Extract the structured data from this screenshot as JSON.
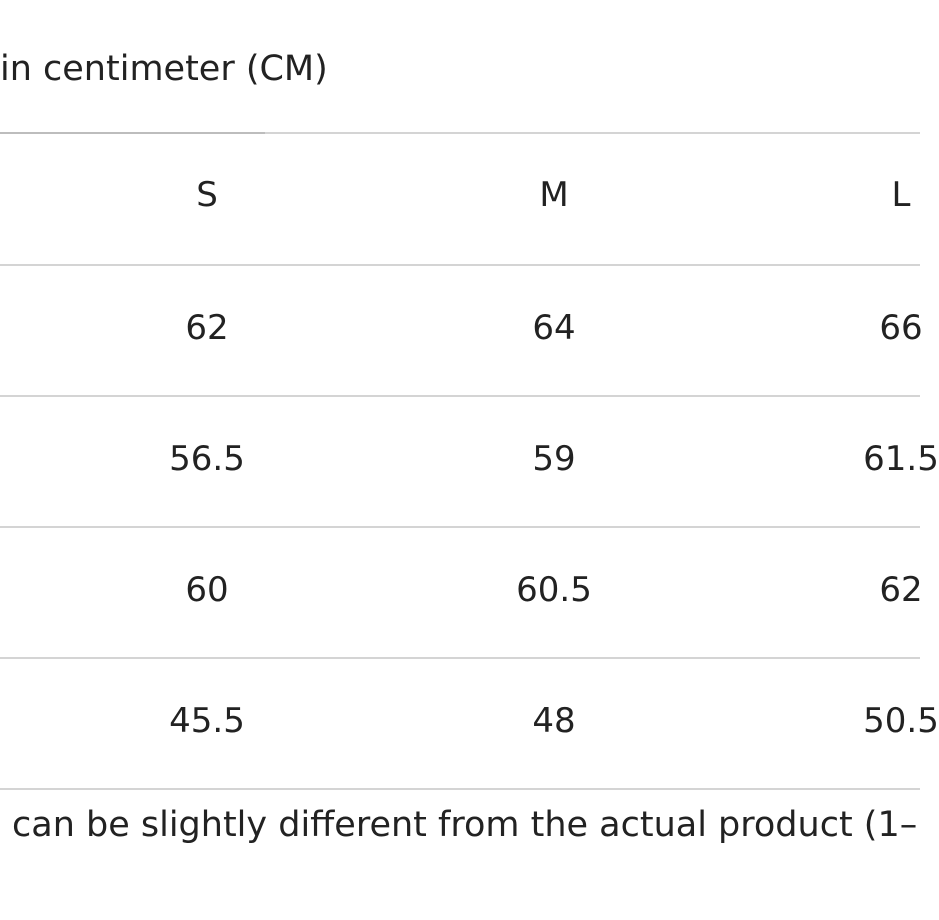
{
  "caption": "in centimeter (CM)",
  "table": {
    "header": [
      "S",
      "M",
      "L"
    ],
    "rows": [
      [
        62,
        64,
        66
      ],
      [
        56.5,
        59,
        61.5
      ],
      [
        60,
        60.5,
        62
      ],
      [
        45.5,
        48,
        50.5
      ]
    ]
  },
  "footnote": "can be slightly different from the actual product (1–"
}
